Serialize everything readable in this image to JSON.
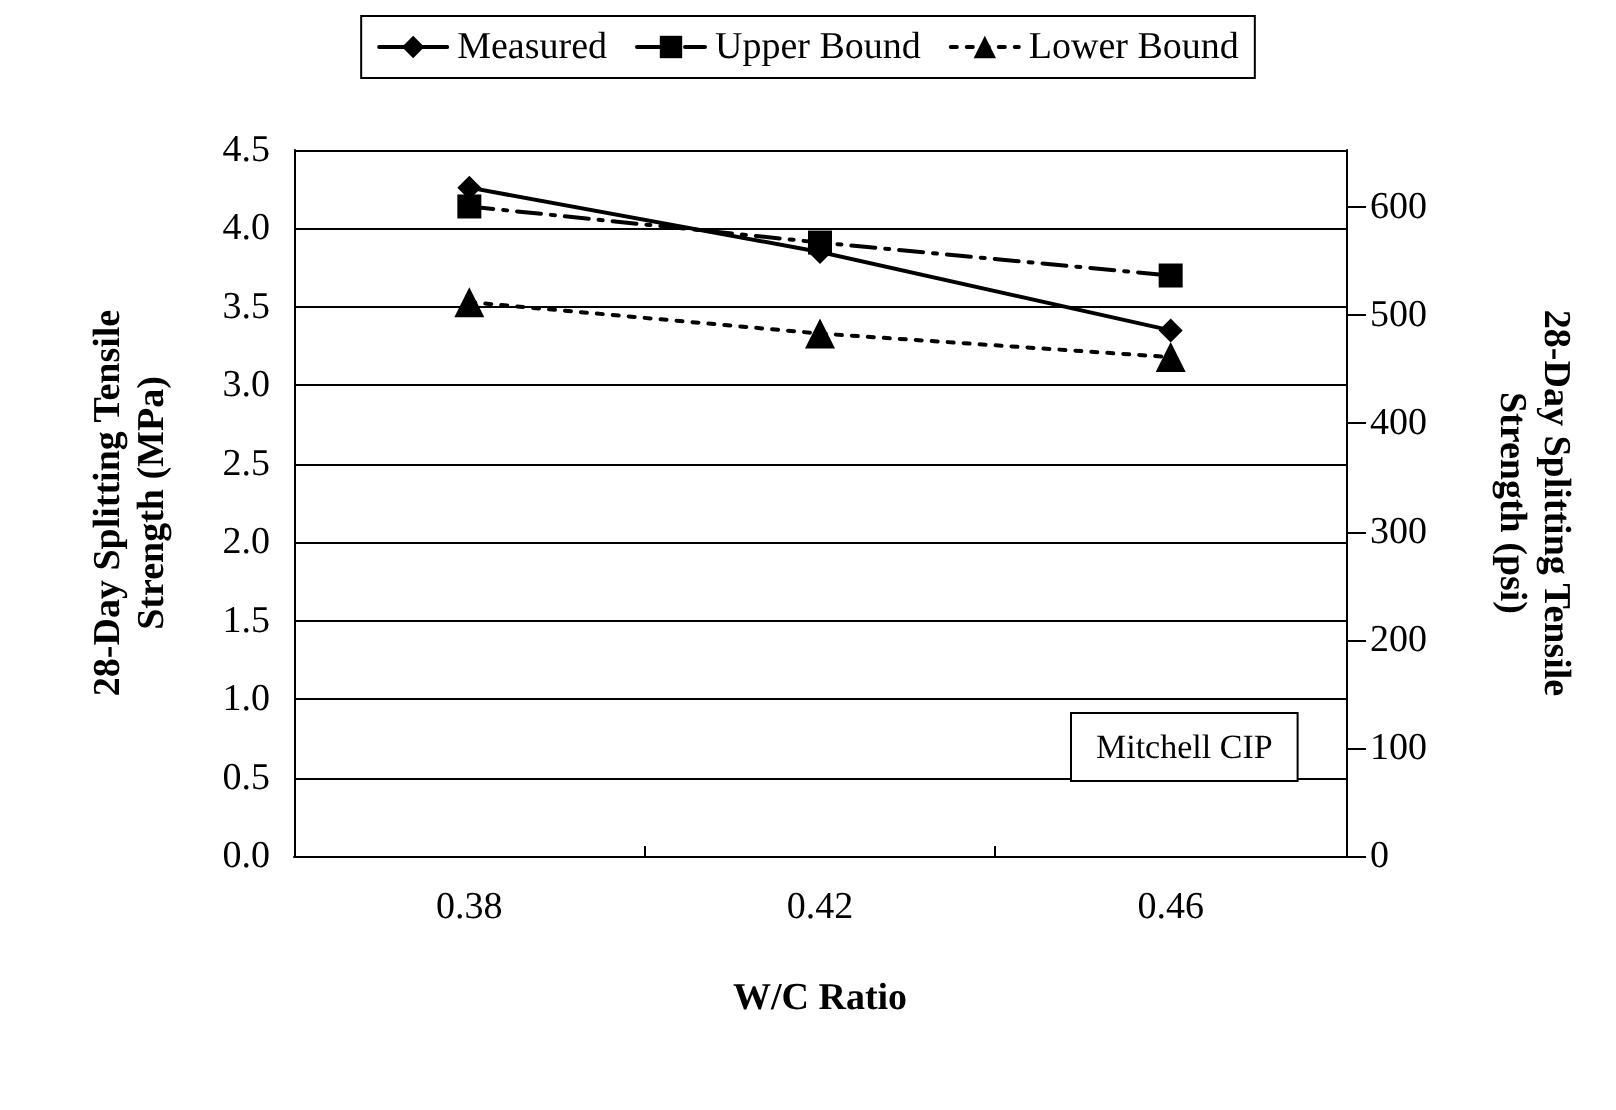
{
  "chart_data": {
    "type": "line",
    "xlabel": "W/C Ratio",
    "ylabel": "28-Day Splitting Tensile Strength (MPa)",
    "y2label": "28-Day Splitting Tensile Strength (psi)",
    "categories": [
      "0.38",
      "0.42",
      "0.46"
    ],
    "series": [
      {
        "name": "Measured",
        "color": "#000000",
        "marker": "diamond",
        "line_style": "solid",
        "values": [
          4.26,
          3.85,
          3.35
        ]
      },
      {
        "name": "Upper Bound",
        "color": "#000000",
        "marker": "square",
        "line_style": "dashdot",
        "values": [
          4.14,
          3.91,
          3.7
        ]
      },
      {
        "name": "Lower Bound",
        "color": "#000000",
        "marker": "triangle",
        "line_style": "dotted",
        "values": [
          3.53,
          3.33,
          3.18
        ]
      }
    ],
    "ylim": [
      0,
      4.5
    ],
    "yticks": [
      {
        "value": 0,
        "label": "0.0"
      },
      {
        "value": 0.5,
        "label": "0.5"
      },
      {
        "value": 1,
        "label": "1.0"
      },
      {
        "value": 1.5,
        "label": "1.5"
      },
      {
        "value": 2,
        "label": "2.0"
      },
      {
        "value": 2.5,
        "label": "2.5"
      },
      {
        "value": 3,
        "label": "3.0"
      },
      {
        "value": 3.5,
        "label": "3.5"
      },
      {
        "value": 4,
        "label": "4.0"
      },
      {
        "value": 4.5,
        "label": "4.5"
      }
    ],
    "y2lim": [
      0,
      652.7
    ],
    "y2ticks": [
      0,
      100,
      200,
      300,
      400,
      500,
      600
    ],
    "grid": "y",
    "legend": "top",
    "annotations": [
      {
        "text": "Mitchell CIP"
      }
    ]
  }
}
